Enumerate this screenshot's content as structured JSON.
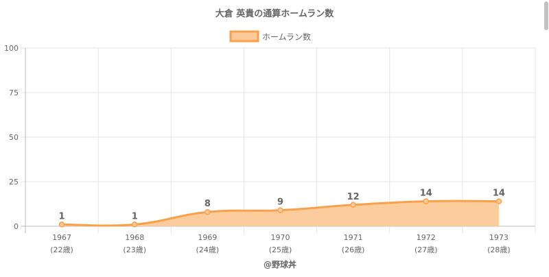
{
  "chart_data": {
    "type": "area",
    "title": "大倉 英貴の通算ホームラン数",
    "categories": [
      "1967",
      "1968",
      "1969",
      "1970",
      "1971",
      "1972",
      "1973"
    ],
    "sub_categories": [
      "(22歳)",
      "(23歳)",
      "(24歳)",
      "(25歳)",
      "(26歳)",
      "(27歳)",
      "(28歳)"
    ],
    "series": [
      {
        "name": "ホームラン数",
        "values": [
          1,
          1,
          8,
          9,
          12,
          14,
          14
        ]
      }
    ],
    "data_labels": [
      "1",
      "1",
      "8",
      "9",
      "12",
      "14",
      "14"
    ],
    "y_ticks": [
      "0",
      "25",
      "50",
      "75",
      "100"
    ],
    "ylim": [
      0,
      100
    ],
    "xlabel": "",
    "ylabel": "",
    "grid": true,
    "legend_position": "top-center",
    "footer": "@野球丼",
    "colors": {
      "line": "#f8a04a",
      "fill": "#fdc998",
      "grid": "#e5e5e5",
      "axis": "#bbbbbb",
      "text": "#666666"
    }
  }
}
